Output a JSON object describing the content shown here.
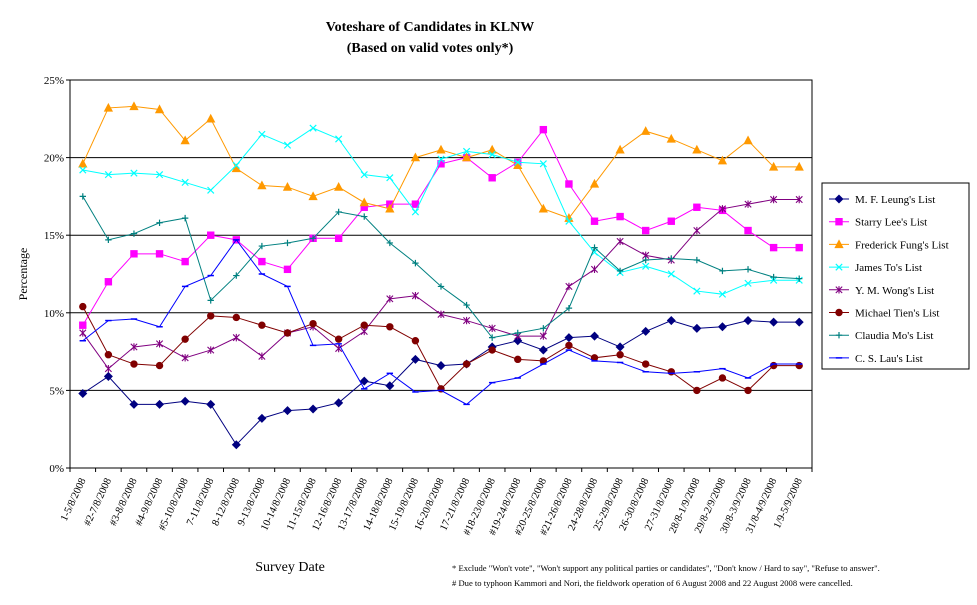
{
  "chart_data": {
    "type": "line",
    "title": "Voteshare of Candidates in KLNW",
    "subtitle": "(Based on valid votes only*)",
    "xlabel": "Survey Date",
    "ylabel": "Percentage",
    "ylim": [
      0,
      25
    ],
    "yticks": [
      "0%",
      "5%",
      "10%",
      "15%",
      "20%",
      "25%"
    ],
    "grid": "horizontal",
    "legend_position": "right",
    "categories": [
      "1-5/8/2008",
      "#2-7/8/2008",
      "#3-8/8/2008",
      "#4-9/8/2008",
      "#5-10/8/2008",
      "7-11/8/2008",
      "8-12/8/2008",
      "9-13/8/2008",
      "10-14/8/2008",
      "11-15/8/2008",
      "12-16/8/2008",
      "13-17/8/2008",
      "14-18/8/2008",
      "15-19/8/2008",
      "16-20/8/2008",
      "17-21/8/2008",
      "#18-23/8/2008",
      "#19-24/8/2008",
      "#20-25/8/2008",
      "#21-26/8/2008",
      "24-28/8/2008",
      "25-29/8/2008",
      "26-30/8/2008",
      "27-31/8/2008",
      "28/8-1/9/2008",
      "29/8-2/9/2008",
      "30/8-3/9/2008",
      "31/8-4/9/2008",
      "1/9-5/9/2008"
    ],
    "series": [
      {
        "name": "M. F. Leung's List",
        "color": "#000080",
        "marker": "diamond",
        "values": [
          4.8,
          5.9,
          4.1,
          4.1,
          4.3,
          4.1,
          1.5,
          3.2,
          3.7,
          3.8,
          4.2,
          5.6,
          5.3,
          7.0,
          6.6,
          6.7,
          7.8,
          8.2,
          7.6,
          8.4,
          8.5,
          7.8,
          8.8,
          9.5,
          9.0,
          9.1,
          9.5,
          9.4,
          9.4
        ]
      },
      {
        "name": "Starry Lee's List",
        "color": "#FF00FF",
        "marker": "square",
        "values": [
          9.2,
          12.0,
          13.8,
          13.8,
          13.3,
          15.0,
          14.7,
          13.3,
          12.8,
          14.8,
          14.8,
          16.8,
          17.0,
          17.0,
          19.6,
          20.0,
          18.7,
          19.7,
          21.8,
          18.3,
          15.9,
          16.2,
          15.3,
          15.9,
          16.8,
          16.6,
          15.3,
          14.2,
          14.2
        ]
      },
      {
        "name": "Frederick Fung's List",
        "color": "#FF9900",
        "marker": "triangle",
        "values": [
          19.6,
          23.2,
          23.3,
          23.1,
          21.1,
          22.5,
          19.3,
          18.2,
          18.1,
          17.5,
          18.1,
          17.1,
          16.7,
          20.0,
          20.5,
          20.0,
          20.5,
          19.5,
          16.7,
          16.1,
          18.3,
          20.5,
          21.7,
          21.2,
          20.5,
          19.8,
          21.1,
          19.4,
          19.4
        ]
      },
      {
        "name": "James To's List",
        "color": "#00FFFF",
        "marker": "x",
        "values": [
          19.2,
          18.9,
          19.0,
          18.9,
          18.4,
          17.9,
          19.5,
          21.5,
          20.8,
          21.9,
          21.2,
          18.9,
          18.7,
          16.5,
          19.9,
          20.4,
          20.2,
          19.7,
          19.6,
          15.9,
          13.9,
          12.6,
          13.0,
          12.5,
          11.4,
          11.2,
          11.9,
          12.1,
          12.1
        ]
      },
      {
        "name": "Y. M. Wong's List",
        "color": "#800080",
        "marker": "asterisk",
        "values": [
          8.7,
          6.4,
          7.8,
          8.0,
          7.1,
          7.6,
          8.4,
          7.2,
          8.7,
          9.1,
          7.7,
          8.8,
          10.9,
          11.1,
          9.9,
          9.5,
          9.0,
          8.5,
          8.5,
          11.7,
          12.8,
          14.6,
          13.7,
          13.4,
          15.3,
          16.7,
          17.0,
          17.3,
          17.3
        ]
      },
      {
        "name": "Michael Tien's List",
        "color": "#800000",
        "marker": "circle",
        "values": [
          10.4,
          7.3,
          6.7,
          6.6,
          8.3,
          9.8,
          9.7,
          9.2,
          8.7,
          9.3,
          8.3,
          9.2,
          9.1,
          8.2,
          5.1,
          6.7,
          7.6,
          7.0,
          6.9,
          7.9,
          7.1,
          7.3,
          6.7,
          6.2,
          5.0,
          5.8,
          5.0,
          6.6,
          6.6
        ]
      },
      {
        "name": "Claudia Mo's List",
        "color": "#008080",
        "marker": "plus",
        "values": [
          17.5,
          14.7,
          15.1,
          15.8,
          16.1,
          10.8,
          12.4,
          14.3,
          14.5,
          14.8,
          16.5,
          16.2,
          14.5,
          13.2,
          11.7,
          10.5,
          8.4,
          8.7,
          9.0,
          10.3,
          14.2,
          12.7,
          13.4,
          13.5,
          13.4,
          12.7,
          12.8,
          12.3,
          12.2
        ]
      },
      {
        "name": "C. S. Lau's List",
        "color": "#0000FF",
        "marker": "dash",
        "values": [
          8.2,
          9.5,
          9.6,
          9.1,
          11.7,
          12.4,
          14.7,
          12.5,
          11.7,
          7.9,
          8.0,
          5.1,
          6.1,
          4.9,
          5.0,
          4.1,
          5.5,
          5.8,
          6.7,
          7.6,
          6.9,
          6.8,
          6.2,
          6.1,
          6.2,
          6.4,
          5.8,
          6.7,
          6.7
        ]
      }
    ],
    "footnotes": [
      "* Exclude \"Won't vote\", \"Won't support any political parties or candidates\", \"Don't know / Hard to say\", \"Refuse to answer\".",
      "# Due to typhoon Kammori and Nori, the fieldwork operation of 6 August 2008 and 22 August 2008 were cancelled."
    ]
  }
}
